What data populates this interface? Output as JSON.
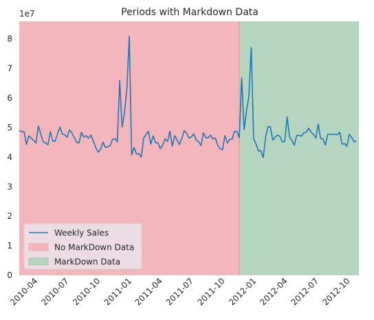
{
  "chart_data": {
    "type": "line",
    "title": "Periods with Markdown Data",
    "xlabel": "",
    "ylabel": "",
    "y_multiplier_label": "1e7",
    "y_scale": 10000000,
    "xlim": [
      "2010-02-05",
      "2012-10-26"
    ],
    "ylim": [
      0,
      86000000
    ],
    "x_ticks": [
      "2010-04",
      "2010-07",
      "2010-10",
      "2011-01",
      "2011-04",
      "2011-07",
      "2011-10",
      "2012-01",
      "2012-04",
      "2012-07",
      "2012-10"
    ],
    "y_ticks": [
      0,
      1,
      2,
      3,
      4,
      5,
      6,
      7,
      8
    ],
    "grid": false,
    "legend": {
      "position": "lower-left",
      "entries": [
        "Weekly Sales",
        "No MarkDown Data",
        "MarkDown Data"
      ]
    },
    "regions": [
      {
        "name": "No MarkDown Data",
        "start": "2010-02-05",
        "end": "2011-11-11",
        "color": "#f4b6bd"
      },
      {
        "name": "MarkDown Data",
        "start": "2011-11-11",
        "end": "2012-10-26",
        "color": "#b6d5c0"
      }
    ],
    "series": [
      {
        "name": "Weekly Sales",
        "color": "#1f77b4",
        "x_start": "2010-02-05",
        "x_step_days": 7,
        "values": [
          49000000,
          48600000,
          48600000,
          44300000,
          47200000,
          46500000,
          45600000,
          44800000,
          50600000,
          47800000,
          45200000,
          44800000,
          44200000,
          48600000,
          45500000,
          45400000,
          47800000,
          50200000,
          47800000,
          47600000,
          46700000,
          49200000,
          48200000,
          46600000,
          45000000,
          44800000,
          48400000,
          46800000,
          47300000,
          46400000,
          47500000,
          45400000,
          43200000,
          41700000,
          42600000,
          45100000,
          43300000,
          43500000,
          43900000,
          46000000,
          46300000,
          45200000,
          66000000,
          50200000,
          55000000,
          63000000,
          81000000,
          40800000,
          43300000,
          41100000,
          41200000,
          40000000,
          46400000,
          47700000,
          48800000,
          44400000,
          47200000,
          44900000,
          44800000,
          42900000,
          44100000,
          46200000,
          45300000,
          48800000,
          43700000,
          47300000,
          45700000,
          44300000,
          46500000,
          49000000,
          48000000,
          46500000,
          46900000,
          47900000,
          45700000,
          45300000,
          43900000,
          48200000,
          46600000,
          46600000,
          47500000,
          46100000,
          46500000,
          44000000,
          42900000,
          42500000,
          47300000,
          44800000,
          46000000,
          46100000,
          48800000,
          48700000,
          46600000,
          66900000,
          49300000,
          55500000,
          60700000,
          77100000,
          46300000,
          44400000,
          42100000,
          42200000,
          39800000,
          46800000,
          50300000,
          50300000,
          45800000,
          46800000,
          47500000,
          47000000,
          45200000,
          45300000,
          53600000,
          46900000,
          45700000,
          44000000,
          47300000,
          47400000,
          47100000,
          48300000,
          48400000,
          49800000,
          48500000,
          47700000,
          46500000,
          51200000,
          46300000,
          46200000,
          44100000,
          47800000,
          47700000,
          47700000,
          47700000,
          47600000,
          48400000,
          44400000,
          44600000,
          43700000,
          47800000,
          46600000,
          45200000,
          45500000
        ]
      }
    ]
  }
}
